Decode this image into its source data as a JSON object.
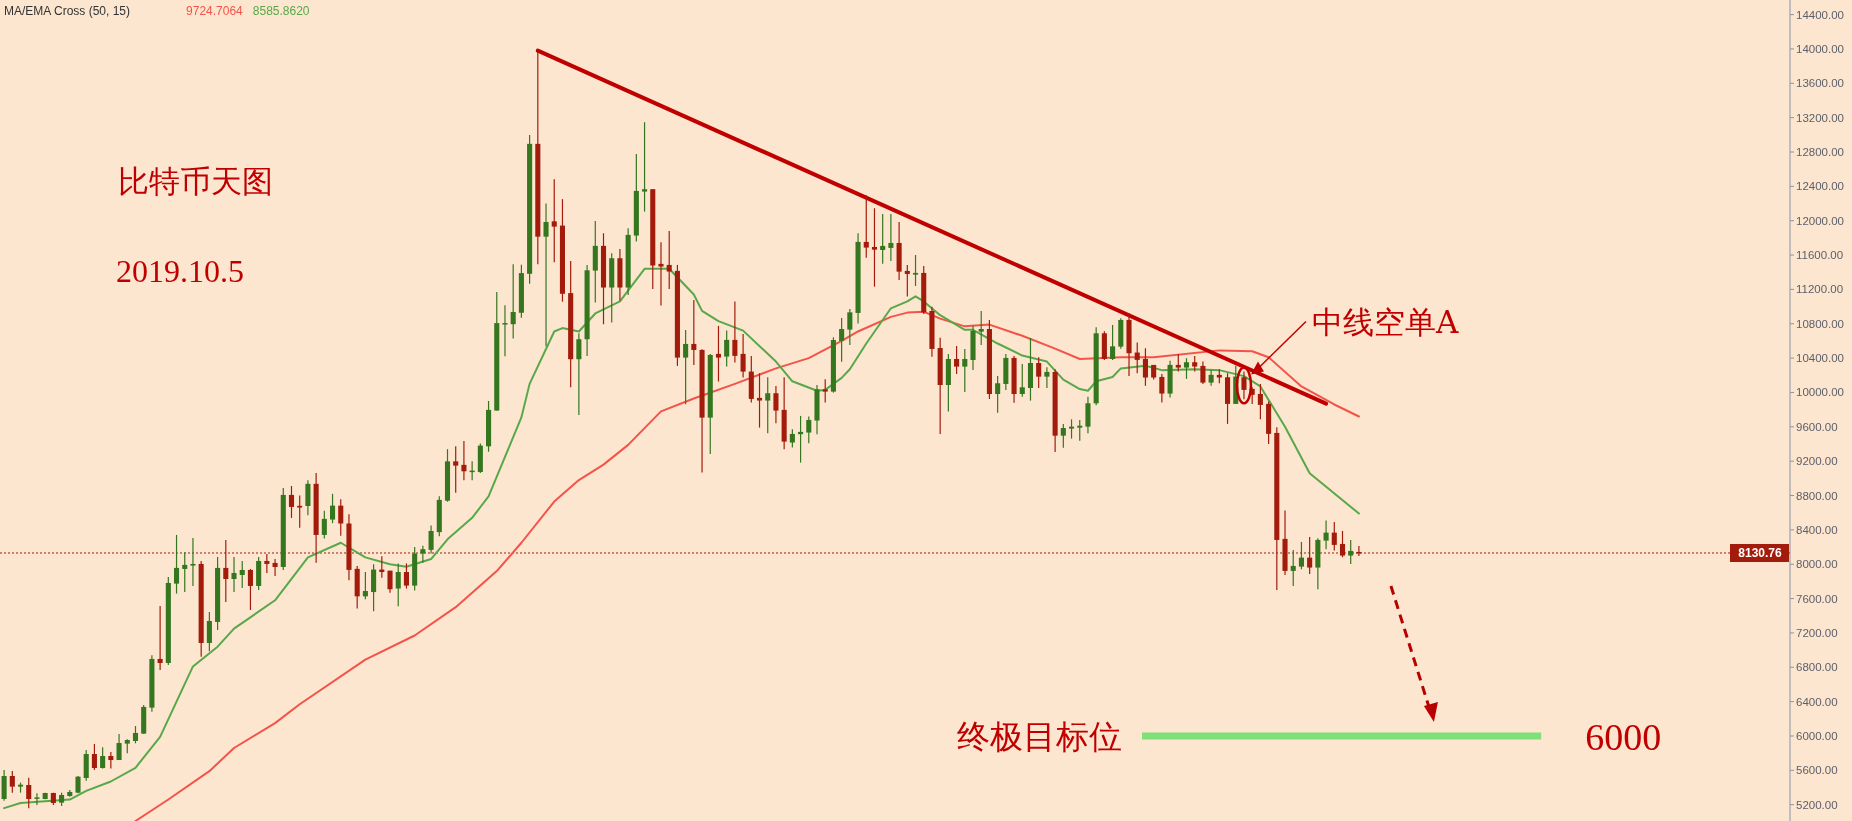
{
  "chart_data": {
    "type": "candlestick",
    "title": "比特币天图",
    "subtitle": "2019.10.5",
    "legend_title": "MA/EMA Cross (50, 15)",
    "legend": "top left",
    "categories": [
      null,
      null,
      null,
      null,
      null,
      null,
      null,
      null,
      null,
      null,
      null,
      null,
      null,
      null,
      null,
      null,
      null,
      null,
      null,
      null,
      null,
      null,
      null,
      null,
      null,
      null,
      null,
      null,
      null,
      null,
      null,
      null,
      null,
      null,
      null,
      null,
      null,
      null,
      null,
      null,
      null,
      null,
      null,
      null,
      null,
      null,
      null,
      null,
      null,
      null,
      null,
      null,
      null,
      null,
      null,
      null,
      null,
      null,
      null,
      null,
      null,
      null,
      null,
      null,
      null,
      null,
      null,
      null,
      null,
      null,
      null,
      null,
      null,
      null,
      null,
      null,
      null,
      null,
      null,
      null,
      null,
      null,
      null,
      null,
      null,
      null,
      null,
      null,
      null,
      null,
      null,
      null,
      null,
      null,
      null,
      null,
      null,
      null,
      null,
      null,
      null,
      null,
      null,
      null,
      null,
      null,
      null,
      null,
      null,
      null,
      null,
      null,
      null,
      null,
      null,
      null,
      null,
      null,
      null,
      null,
      null,
      null,
      null,
      null,
      null,
      null,
      null,
      null,
      null,
      null,
      null,
      null,
      null,
      null,
      null,
      null,
      null,
      null,
      null,
      null,
      null,
      null,
      null,
      null,
      null,
      null,
      null,
      null,
      null,
      null,
      null,
      null,
      null,
      null,
      null,
      null,
      null,
      null,
      null,
      null,
      null,
      null,
      null,
      null,
      null,
      null,
      null,
      null,
      null,
      null,
      null,
      null,
      null,
      null,
      null,
      null,
      null,
      null,
      null,
      null,
      null,
      null,
      null,
      null,
      null,
      null,
      null,
      null,
      null,
      null,
      null,
      null,
      null,
      null,
      null,
      null,
      null,
      null,
      null,
      null,
      null,
      null,
      null,
      null,
      null,
      null,
      null,
      null,
      null,
      null,
      null,
      null,
      null,
      null,
      null,
      null,
      null,
      null
    ],
    "colors": [
      "#35771f",
      "#a31c0b",
      "#35771f",
      "#a31c0b",
      "#35771f",
      "#35771f",
      "#a31c0b",
      "#35771f",
      "#35771f",
      "#35771f",
      "#35771f",
      "#a31c0b",
      "#35771f",
      "#a31c0b",
      "#35771f",
      "#35771f",
      "#35771f",
      "#35771f",
      "#35771f",
      "#a31c0b",
      "#35771f",
      "#35771f",
      "#35771f",
      "#35771f",
      "#a31c0b",
      "#35771f",
      "#35771f",
      "#a31c0b",
      "#35771f",
      "#35771f",
      "#a31c0b",
      "#35771f",
      "#a31c0b",
      "#a31c0b",
      "#35771f",
      "#a31c0b",
      "#a31c0b",
      "#35771f",
      "#a31c0b",
      "#35771f",
      "#35771f",
      "#a31c0b",
      "#a31c0b",
      "#a31c0b",
      "#35771f",
      "#35771f",
      "#a31c0b",
      "#a31c0b",
      "#35771f",
      "#a31c0b",
      "#35771f",
      "#35771f",
      "#35771f",
      "#35771f",
      "#35771f",
      "#a31c0b",
      "#a31c0b",
      "#35771f",
      "#35771f",
      "#35771f",
      "#35771f",
      "#35771f",
      "#35771f",
      "#35771f",
      "#35771f",
      "#a31c0b",
      "#35771f",
      "#a31c0b",
      "#a31c0b",
      "#a31c0b",
      "#35771f",
      "#35771f",
      "#35771f",
      "#a31c0b",
      "#35771f",
      "#a31c0b",
      "#35771f",
      "#35771f",
      "#35771f",
      "#a31c0b",
      "#a31c0b",
      "#a31c0b",
      "#a31c0b",
      "#35771f",
      "#a31c0b",
      "#a31c0b",
      "#35771f",
      "#a31c0b",
      "#35771f",
      "#a31c0b",
      "#a31c0b",
      "#a31c0b",
      "#a31c0b",
      "#35771f",
      "#a31c0b",
      "#a31c0b",
      "#35771f",
      "#35771f",
      "#35771f",
      "#35771f",
      "#a31c0b",
      "#35771f",
      "#35771f",
      "#35771f",
      "#35771f",
      "#a31c0b",
      "#a31c0b",
      "#35771f",
      "#35771f",
      "#a31c0b",
      "#a31c0b",
      "#35771f",
      "#a31c0b",
      "#a31c0b",
      "#a31c0b",
      "#35771f",
      "#a31c0b",
      "#35771f",
      "#35771f",
      "#35771f",
      "#a31c0b",
      "#35771f",
      "#35771f",
      "#a31c0b",
      "#35771f",
      "#35771f",
      "#a31c0b",
      "#35771f",
      "#a31c0b",
      "#35771f",
      "#35771f",
      "#35771f",
      "#35771f",
      "#35771f",
      "#a31c0b",
      "#35771f",
      "#35771f",
      "#a31c0b",
      "#a31c0b",
      "#a31c0b",
      "#a31c0b",
      "#a31c0b",
      "#35771f",
      "#a31c0b",
      "#35771f",
      "#a31c0b",
      "#a31c0b",
      "#35771f",
      "#a31c0b",
      "#a31c0b",
      "#35771f",
      "#a31c0b",
      "#a31c0b",
      "#a31c0b",
      "#a31c0b",
      "#a31c0b",
      "#a31c0b",
      "#35771f",
      "#35771f",
      "#a31c0b",
      "#35771f",
      "#35771f",
      "#a31c0b",
      "#a31c0b",
      "#35771f",
      "#a31c0b",
      null,
      null,
      null,
      null,
      null,
      null,
      null,
      null,
      null,
      null,
      null,
      null,
      null,
      null,
      null,
      null,
      null,
      null,
      null,
      null,
      null,
      null,
      null,
      null,
      null,
      null,
      null,
      null,
      null,
      null,
      null,
      null,
      null,
      null,
      null,
      null,
      null,
      null,
      null,
      null,
      null,
      null,
      null,
      null,
      null,
      null,
      null,
      null,
      null,
      null,
      null,
      null
    ],
    "ohlc": [
      [
        5266,
        5604,
        5247,
        5534
      ],
      [
        5534,
        5592,
        5340,
        5410
      ],
      [
        5410,
        5457,
        5340,
        5433
      ],
      [
        5429,
        5515,
        5158,
        5266
      ],
      [
        5270,
        5332,
        5197,
        5285
      ],
      [
        5266,
        5340,
        5262,
        5336
      ],
      [
        5336,
        5340,
        5197,
        5220
      ],
      [
        5224,
        5340,
        5185,
        5313
      ],
      [
        5301,
        5371,
        5293,
        5348
      ],
      [
        5340,
        5534,
        5332,
        5526
      ],
      [
        5511,
        5837,
        5480,
        5790
      ],
      [
        5790,
        5907,
        5604,
        5627
      ],
      [
        5627,
        5868,
        5620,
        5767
      ],
      [
        5767,
        5814,
        5620,
        5720
      ],
      [
        5720,
        6023,
        5720,
        5918
      ],
      [
        5911,
        5961,
        5798,
        5953
      ],
      [
        5942,
        6116,
        5915,
        6035
      ],
      [
        6027,
        6361,
        6027,
        6338
      ],
      [
        6330,
        6939,
        6283,
        6897
      ],
      [
        6897,
        7514,
        6769,
        6850
      ],
      [
        6850,
        7852,
        6827,
        7782
      ],
      [
        7774,
        8341,
        7658,
        7957
      ],
      [
        7945,
        8139,
        7677,
        7992
      ],
      [
        7984,
        8306,
        7747,
        8003
      ],
      [
        8003,
        8038,
        6924,
        7083
      ],
      [
        7083,
        7444,
        6986,
        7339
      ],
      [
        7328,
        8085,
        7234,
        7957
      ],
      [
        7957,
        8283,
        7561,
        7828
      ],
      [
        7828,
        8085,
        7677,
        7898
      ],
      [
        7875,
        8038,
        7724,
        7933
      ],
      [
        7933,
        7945,
        7467,
        7747
      ],
      [
        7747,
        8085,
        7700,
        8038
      ],
      [
        8038,
        8120,
        7898,
        8003
      ],
      [
        8015,
        8061,
        7863,
        7968
      ],
      [
        7968,
        8888,
        7933,
        8807
      ],
      [
        8807,
        8911,
        8539,
        8667
      ],
      [
        8680,
        8799,
        8425,
        8660
      ],
      [
        8678,
        8978,
        8570,
        8936
      ],
      [
        8936,
        9061,
        8017,
        8341
      ],
      [
        8341,
        8624,
        8300,
        8528
      ],
      [
        8520,
        8820,
        8478,
        8682
      ],
      [
        8682,
        8757,
        8333,
        8474
      ],
      [
        8474,
        8583,
        7813,
        7934
      ],
      [
        7946,
        7980,
        7485,
        7626
      ],
      [
        7626,
        7909,
        7593,
        7688
      ],
      [
        7676,
        7999,
        7451,
        7938
      ],
      [
        7938,
        8092,
        7842,
        7909
      ],
      [
        7925,
        7925,
        7668,
        7709
      ],
      [
        7717,
        8009,
        7510,
        7909
      ],
      [
        7909,
        8009,
        7717,
        7751
      ],
      [
        7751,
        8200,
        7693,
        8125
      ],
      [
        8125,
        8216,
        8017,
        8175
      ],
      [
        8167,
        8450,
        8125,
        8387
      ],
      [
        8374,
        8791,
        8325,
        8749
      ],
      [
        8740,
        9340,
        8728,
        9198
      ],
      [
        9198,
        9373,
        8832,
        9148
      ],
      [
        9157,
        9435,
        8978,
        9082
      ],
      [
        9082,
        9198,
        8978,
        9090
      ],
      [
        9074,
        9406,
        9061,
        9381
      ],
      [
        9373,
        9901,
        9310,
        9797
      ],
      [
        9789,
        11169,
        9789,
        10808
      ],
      [
        10795,
        11016,
        10421,
        10808
      ],
      [
        10795,
        11494,
        10629,
        10937
      ],
      [
        10928,
        11486,
        10870,
        11390
      ],
      [
        11382,
        12999,
        11265,
        12895
      ],
      [
        12895,
        13980,
        11494,
        11814
      ],
      [
        11814,
        12201,
        10537,
        11985
      ],
      [
        11993,
        12484,
        11515,
        11931
      ],
      [
        11943,
        12251,
        11057,
        11149
      ],
      [
        11157,
        11532,
        10061,
        10387
      ],
      [
        10387,
        10690,
        9738,
        10620
      ],
      [
        10620,
        11485,
        10426,
        11423
      ],
      [
        11419,
        11998,
        11047,
        11707
      ],
      [
        11707,
        11854,
        10794,
        11222
      ],
      [
        11222,
        11621,
        10814,
        11563
      ],
      [
        11563,
        11672,
        11070,
        11222
      ],
      [
        11222,
        11912,
        11136,
        11835
      ],
      [
        11827,
        12778,
        11757,
        12347
      ],
      [
        12339,
        13147,
        12106,
        12367
      ],
      [
        12367,
        12367,
        11206,
        11478
      ],
      [
        11497,
        11749,
        11012,
        11466
      ],
      [
        11485,
        11881,
        11206,
        11408
      ],
      [
        11416,
        11485,
        10309,
        10406
      ],
      [
        10406,
        10728,
        9863,
        10565
      ],
      [
        10565,
        11078,
        10321,
        10495
      ],
      [
        10495,
        10503,
        9067,
        9707
      ],
      [
        9707,
        10449,
        9284,
        10437
      ],
      [
        10449,
        10775,
        10127,
        10406
      ],
      [
        10418,
        10721,
        10301,
        10612
      ],
      [
        10612,
        11058,
        10348,
        10426
      ],
      [
        10449,
        10682,
        10173,
        10243
      ],
      [
        10243,
        10426,
        9882,
        9925
      ],
      [
        9937,
        10224,
        9591,
        9906
      ],
      [
        9906,
        10177,
        9525,
        9991
      ],
      [
        9991,
        10076,
        9641,
        9789
      ],
      [
        9797,
        10177,
        9339,
        9428
      ],
      [
        9417,
        9572,
        9358,
        9517
      ],
      [
        9514,
        9727,
        9183,
        9541
      ],
      [
        9533,
        9719,
        9409,
        9680
      ],
      [
        9673,
        10088,
        9513,
        10037
      ],
      [
        10037,
        10154,
        9882,
        10010
      ],
      [
        10010,
        10642,
        9998,
        10611
      ],
      [
        10600,
        10868,
        10359,
        10739
      ],
      [
        10732,
        10972,
        10553,
        10933
      ],
      [
        10926,
        11853,
        10802,
        11753
      ],
      [
        11753,
        12296,
        11570,
        11687
      ],
      [
        11694,
        12145,
        11232,
        11663
      ],
      [
        11659,
        12079,
        11500,
        11706
      ],
      [
        11683,
        12079,
        11531,
        11741
      ],
      [
        11741,
        11985,
        11310,
        11407
      ],
      [
        11415,
        11485,
        11116,
        11380
      ],
      [
        11372,
        11601,
        11240,
        11392
      ],
      [
        11392,
        11473,
        10914,
        10933
      ],
      [
        10949,
        10999,
        10417,
        10507
      ],
      [
        10518,
        10638,
        9517,
        10087
      ],
      [
        10087,
        10448,
        9777,
        10390
      ],
      [
        10390,
        10541,
        10215,
        10301
      ],
      [
        10301,
        10506,
        10006,
        10390
      ],
      [
        10378,
        10774,
        10262,
        10716
      ],
      [
        10708,
        10949,
        10553,
        10739
      ],
      [
        10739,
        10844,
        9924,
        9982
      ],
      [
        9982,
        10192,
        9765,
        10107
      ],
      [
        10099,
        10448,
        10029,
        10402
      ],
      [
        10402,
        10425,
        9881,
        9982
      ],
      [
        9982,
        10332,
        9951,
        10060
      ],
      [
        10052,
        10634,
        9905,
        10343
      ],
      [
        10343,
        10409,
        10052,
        10184
      ],
      [
        10184,
        10293,
        10052,
        10239
      ],
      [
        10239,
        10270,
        9307,
        9497
      ],
      [
        9497,
        9633,
        9357,
        9586
      ],
      [
        9579,
        9687,
        9462,
        9602
      ],
      [
        9590,
        9680,
        9439,
        9613
      ],
      [
        9602,
        9951,
        9524,
        9874
      ],
      [
        9874,
        10759,
        9850,
        10689
      ],
      [
        10689,
        10712,
        10378,
        10390
      ],
      [
        10390,
        10786,
        10378,
        10537
      ],
      [
        10534,
        10864,
        10510,
        10844
      ],
      [
        10845,
        10923,
        10193,
        10457
      ],
      [
        10465,
        10581,
        10224,
        10379
      ],
      [
        10391,
        10515,
        10077,
        10174
      ],
      [
        10321,
        10321,
        10150,
        10174
      ],
      [
        10181,
        10216,
        9882,
        9987
      ],
      [
        9987,
        10368,
        9941,
        10321
      ],
      [
        10321,
        10449,
        10243,
        10290
      ],
      [
        10290,
        10399,
        10158,
        10352
      ],
      [
        10352,
        10426,
        10243,
        10302
      ],
      [
        10309,
        10360,
        10100,
        10115
      ],
      [
        10115,
        10263,
        10077,
        10205
      ],
      [
        10205,
        10271,
        10108,
        10174
      ],
      [
        10177,
        10224,
        9634,
        9867
      ],
      [
        9867,
        10310,
        9867,
        10185
      ],
      [
        10177,
        10243,
        9921,
        10030
      ],
      [
        10042,
        10061,
        9867,
        9972
      ],
      [
        9983,
        10100,
        9688,
        9855
      ],
      [
        9867,
        9894,
        9401,
        9518
      ],
      [
        9529,
        9595,
        7701,
        8283
      ],
      [
        8295,
        8625,
        7875,
        7922
      ],
      [
        7922,
        8167,
        7747,
        7980
      ],
      [
        7972,
        8260,
        7941,
        8077
      ],
      [
        8077,
        8318,
        7887,
        7961
      ],
      [
        7961,
        8302,
        7709,
        8283
      ],
      [
        8275,
        8508,
        8174,
        8368
      ],
      [
        8368,
        8493,
        8159,
        8225
      ],
      [
        8236,
        8388,
        8081,
        8101
      ],
      [
        8101,
        8283,
        8004,
        8155
      ],
      [
        8143,
        8213,
        8097,
        8131
      ],
      null,
      null,
      null,
      null,
      null,
      null,
      null,
      null,
      null,
      null,
      null,
      null,
      null,
      null,
      null,
      null,
      null,
      null,
      null,
      null,
      null,
      null,
      null,
      null,
      null,
      null,
      null,
      null,
      null,
      null,
      null,
      null,
      null,
      null,
      null,
      null,
      null,
      null,
      null,
      null,
      null,
      null,
      null,
      null,
      null,
      null,
      null,
      null,
      null,
      null,
      null,
      null
    ],
    "series": [
      {
        "name": "9724.7064",
        "type": "line",
        "color": "#f4534a",
        "values": [
          null,
          null,
          null,
          null,
          null,
          null,
          null,
          null,
          null,
          null,
          null,
          null,
          null,
          null,
          null,
          null,
          5010,
          null,
          null,
          null,
          5260,
          null,
          null,
          null,
          null,
          5590,
          null,
          null,
          5860,
          null,
          null,
          null,
          null,
          6150,
          null,
          null,
          6370,
          null,
          null,
          null,
          null,
          null,
          null,
          null,
          6890,
          null,
          null,
          null,
          null,
          null,
          7170,
          null,
          null,
          null,
          null,
          7500,
          null,
          null,
          null,
          null,
          7920,
          null,
          null,
          8250,
          null,
          null,
          null,
          8730,
          null,
          null,
          8980,
          null,
          null,
          9160,
          null,
          null,
          9390,
          null,
          null,
          null,
          9780,
          null,
          null,
          null,
          9930,
          null,
          null,
          null,
          null,
          10100,
          null,
          null,
          null,
          null,
          10280,
          null,
          null,
          null,
          10400,
          null,
          null,
          null,
          10600,
          null,
          10710,
          null,
          null,
          null,
          10880,
          null,
          10930,
          null,
          10940,
          null,
          10860,
          null,
          null,
          10770,
          null,
          null,
          10790,
          null,
          null,
          null,
          10660,
          null,
          null,
          null,
          10510,
          null,
          null,
          10390,
          null,
          null,
          null,
          null,
          10410,
          null,
          null,
          null,
          10410,
          null,
          null,
          null,
          null,
          null,
          null,
          null,
          10490,
          null,
          null,
          null,
          10480,
          null,
          10410,
          null,
          null,
          null,
          10070,
          null,
          null,
          null,
          9860,
          null,
          null,
          9720,
          null,
          null,
          null,
          null,
          null,
          null,
          null,
          null,
          null,
          null,
          null,
          null,
          null,
          null,
          null,
          null,
          null,
          null,
          null,
          null,
          null,
          null,
          null,
          null,
          null,
          null,
          null,
          null,
          null,
          null,
          null,
          null,
          null,
          null,
          null,
          null,
          null,
          null,
          null,
          null,
          null,
          null,
          null,
          null,
          null,
          null,
          null,
          null,
          null,
          null,
          null,
          null
        ]
      },
      {
        "name": "8585.8620",
        "type": "line",
        "color": "#58a84a",
        "values": [
          5160,
          null,
          5220,
          null,
          null,
          null,
          null,
          null,
          5260,
          null,
          5360,
          null,
          null,
          5470,
          null,
          null,
          5630,
          null,
          null,
          5990,
          null,
          null,
          null,
          6810,
          null,
          null,
          7040,
          null,
          7250,
          null,
          null,
          null,
          null,
          7580,
          null,
          null,
          null,
          8080,
          null,
          null,
          null,
          8250,
          null,
          null,
          8080,
          null,
          null,
          8000,
          null,
          7970,
          null,
          null,
          8060,
          null,
          8290,
          null,
          null,
          8540,
          null,
          8790,
          null,
          9250,
          null,
          9710,
          10100,
          null,
          null,
          10710,
          10750,
          null,
          10710,
          null,
          10920,
          null,
          null,
          11060,
          null,
          null,
          11440,
          null,
          null,
          11440,
          null,
          null,
          11140,
          10950,
          null,
          10830,
          null,
          null,
          10720,
          null,
          null,
          null,
          10360,
          null,
          10130,
          null,
          null,
          10020,
          10030,
          null,
          10170,
          10270,
          null,
          10570,
          null,
          null,
          10980,
          null,
          11060,
          11120,
          11060,
          null,
          10900,
          null,
          null,
          10730,
          10730,
          null,
          null,
          10570,
          null,
          null,
          10430,
          null,
          null,
          10360,
          null,
          10150,
          null,
          10040,
          10020,
          10130,
          null,
          10180,
          10280,
          null,
          null,
          10310,
          null,
          10260,
          null,
          null,
          null,
          10270,
          null,
          null,
          10260,
          null,
          null,
          10190,
          null,
          10070,
          null,
          null,
          9600,
          null,
          null,
          9060,
          null,
          null,
          null,
          null,
          null,
          8590,
          null,
          null,
          null,
          null,
          null,
          null,
          null,
          null,
          null,
          null,
          null,
          null,
          null,
          null,
          null,
          null,
          null,
          null,
          null,
          null,
          null,
          null,
          null,
          null,
          null,
          null,
          null,
          null,
          null,
          null,
          null,
          null,
          null,
          null,
          null,
          null,
          null,
          null,
          null,
          null,
          null,
          null,
          null,
          null,
          null,
          null,
          null,
          null,
          null,
          null,
          null,
          null
        ]
      },
      {
        "type": "line",
        "color": "#c00000",
        "values": [
          null,
          null,
          null,
          null,
          null,
          null,
          null,
          null,
          null,
          null,
          null,
          null,
          null,
          null,
          null,
          null,
          null,
          null,
          null,
          null,
          null,
          null,
          null,
          null,
          null,
          null,
          null,
          null,
          null,
          null,
          null,
          null,
          null,
          null,
          null,
          null,
          null,
          null,
          null,
          null,
          null,
          null,
          null,
          null,
          null,
          null,
          null,
          null,
          null,
          null,
          null,
          null,
          null,
          null,
          null,
          null,
          null,
          null,
          null,
          null,
          null,
          null,
          null,
          null,
          null,
          13980,
          null,
          null,
          null,
          null,
          null,
          null,
          null,
          null,
          null,
          null,
          null,
          null,
          null,
          null,
          null,
          null,
          null,
          null,
          null,
          null,
          null,
          null,
          null,
          null,
          null,
          null,
          null,
          null,
          null,
          null,
          null,
          null,
          null,
          null,
          null,
          null,
          null,
          null,
          null,
          null,
          null,
          null,
          null,
          null,
          null,
          null,
          null,
          null,
          null,
          null,
          null,
          null,
          null,
          null,
          null,
          null,
          null,
          null,
          null,
          null,
          null,
          null,
          null,
          null,
          null,
          null,
          null,
          null,
          null,
          null,
          null,
          null,
          null,
          null,
          null,
          null,
          null,
          null,
          null,
          null,
          null,
          null,
          null,
          null,
          null,
          null,
          null,
          null,
          null,
          null,
          null,
          null,
          null,
          null,
          null,
          9870,
          null,
          null,
          null,
          null,
          null,
          null,
          null,
          null,
          null,
          null,
          null,
          null,
          null,
          null,
          null,
          null,
          null,
          null,
          null,
          null,
          null,
          null,
          null,
          null,
          null,
          null,
          null,
          null,
          null,
          null,
          null,
          null,
          null,
          null,
          null,
          null,
          null,
          null,
          null,
          null,
          null,
          null,
          null,
          null,
          null,
          null,
          null,
          null,
          null,
          null,
          null,
          null,
          null,
          null,
          null,
          null
        ]
      }
    ],
    "ylim": [
      5010,
      14570
    ],
    "yticks": [
      {
        "value": 5200,
        "label": "5200.00"
      },
      {
        "value": 5600,
        "label": "5600.00"
      },
      {
        "value": 6000,
        "label": "6000.00"
      },
      {
        "value": 6400,
        "label": "6400.00"
      },
      {
        "value": 6800,
        "label": "6800.00"
      },
      {
        "value": 7200,
        "label": "7200.00"
      },
      {
        "value": 7600,
        "label": "7600.00"
      },
      {
        "value": 8000,
        "label": "8000.00"
      },
      {
        "value": 8400,
        "label": "8400.00"
      },
      {
        "value": 8800,
        "label": "8800.00"
      },
      {
        "value": 9200,
        "label": "9200.00"
      },
      {
        "value": 9600,
        "label": "9600.00"
      },
      {
        "value": 10000,
        "label": "10000.00"
      },
      {
        "value": 10400,
        "label": "10400.00"
      },
      {
        "value": 10800,
        "label": "10800.00"
      },
      {
        "value": 11200,
        "label": "11200.00"
      },
      {
        "value": 11600,
        "label": "11600.00"
      },
      {
        "value": 12000,
        "label": "12000.00"
      },
      {
        "value": 12400,
        "label": "12400.00"
      },
      {
        "value": 12800,
        "label": "12800.00"
      },
      {
        "value": 13200,
        "label": "13200.00"
      },
      {
        "value": 13600,
        "label": "13600.00"
      },
      {
        "value": 14000,
        "label": "14000.00"
      },
      {
        "value": 14400,
        "label": "14400.00"
      }
    ],
    "ref_lines": [
      {
        "axis": "y",
        "value": 8130.76,
        "label": "8130.76",
        "color": "#a31c0b",
        "line_style": "dotted"
      },
      {
        "axis": "y",
        "value": 6000,
        "label": "6000",
        "color": "#7fe07a",
        "line_style": "solid"
      }
    ],
    "annotations": [
      "中线空单A",
      "终极目标位"
    ],
    "grid": false,
    "marker": "none"
  }
}
